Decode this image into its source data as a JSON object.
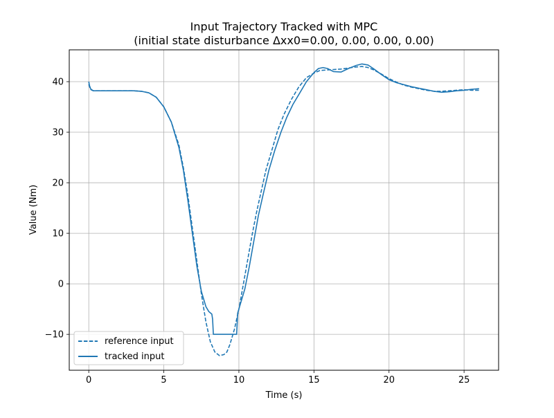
{
  "chart_data": {
    "type": "line",
    "title": "Input Trajectory Tracked with MPC",
    "subtitle": "(initial state disturbance Δxx0=0.00, 0.00, 0.00, 0.00)",
    "xlabel": "Time (s)",
    "ylabel": "Value (Nm)",
    "xlim": [
      -1.3,
      27.3
    ],
    "ylim": [
      -17.1,
      46.3
    ],
    "xticks": [
      0,
      5,
      10,
      15,
      20,
      25
    ],
    "yticks": [
      -10,
      0,
      10,
      20,
      30,
      40
    ],
    "xtick_labels": [
      "0",
      "5",
      "10",
      "15",
      "20",
      "25"
    ],
    "ytick_labels": [
      "−10",
      "0",
      "10",
      "20",
      "30",
      "40"
    ],
    "grid": true,
    "legend_position": "lower-left",
    "series": [
      {
        "name": "reference input",
        "style": "dashed",
        "color": "#1f77b4",
        "x": [
          0.0,
          0.1,
          0.3,
          0.5,
          1.0,
          2.0,
          3.0,
          3.5,
          4.0,
          4.5,
          5.0,
          5.5,
          6.0,
          6.3,
          6.6,
          6.9,
          7.2,
          7.5,
          7.8,
          8.1,
          8.4,
          8.7,
          9.0,
          9.2,
          9.4,
          9.7,
          10.0,
          10.3,
          10.6,
          10.9,
          11.2,
          11.5,
          11.8,
          12.2,
          12.6,
          13.0,
          13.5,
          14.0,
          14.5,
          15.0,
          15.4,
          15.8,
          16.3,
          16.8,
          17.3,
          17.8,
          18.2,
          18.6,
          19.0,
          19.5,
          20.0,
          20.5,
          21.0,
          21.5,
          22.0,
          22.5,
          23.0,
          23.5,
          24.0,
          24.5,
          25.0,
          25.5,
          26.0
        ],
        "y": [
          39.5,
          38.6,
          38.2,
          38.2,
          38.2,
          38.2,
          38.2,
          38.1,
          37.8,
          36.9,
          35.0,
          32.0,
          27.5,
          23.0,
          17.5,
          11.0,
          4.5,
          -2.0,
          -7.5,
          -11.5,
          -13.5,
          -14.2,
          -14.0,
          -13.5,
          -12.0,
          -9.0,
          -5.0,
          0.0,
          5.0,
          10.0,
          14.5,
          18.5,
          22.5,
          26.5,
          30.5,
          33.5,
          36.5,
          39.0,
          40.8,
          41.7,
          42.2,
          42.3,
          42.4,
          42.5,
          42.7,
          42.9,
          43.0,
          42.8,
          42.3,
          41.5,
          40.6,
          39.9,
          39.3,
          38.9,
          38.6,
          38.3,
          38.1,
          38.1,
          38.2,
          38.3,
          38.4,
          38.3,
          38.3
        ]
      },
      {
        "name": "tracked input",
        "style": "solid",
        "color": "#1f77b4",
        "x": [
          0.0,
          0.05,
          0.15,
          0.3,
          0.5,
          1.0,
          2.0,
          3.0,
          3.5,
          4.0,
          4.5,
          5.0,
          5.5,
          6.0,
          6.3,
          6.6,
          6.9,
          7.2,
          7.5,
          7.8,
          8.0,
          8.2,
          8.25,
          8.3,
          8.6,
          9.0,
          9.5,
          9.85,
          9.9,
          9.92,
          10.1,
          10.4,
          10.7,
          11.0,
          11.3,
          11.6,
          12.0,
          12.4,
          12.8,
          13.2,
          13.6,
          14.0,
          14.5,
          15.0,
          15.3,
          15.6,
          15.9,
          16.3,
          16.8,
          17.3,
          17.8,
          18.2,
          18.6,
          19.0,
          19.5,
          20.0,
          20.5,
          21.0,
          21.5,
          22.0,
          22.5,
          23.0,
          23.5,
          24.0,
          24.5,
          25.0,
          25.5,
          26.0
        ],
        "y": [
          40.0,
          39.2,
          38.4,
          38.2,
          38.2,
          38.2,
          38.2,
          38.2,
          38.1,
          37.8,
          36.9,
          35.0,
          32.0,
          27.0,
          22.5,
          16.5,
          10.0,
          3.5,
          -1.5,
          -4.5,
          -5.5,
          -6.0,
          -7.0,
          -10.0,
          -10.0,
          -10.0,
          -10.0,
          -10.0,
          -7.0,
          -5.8,
          -4.0,
          -1.0,
          3.5,
          8.5,
          13.5,
          17.5,
          22.5,
          26.5,
          30.0,
          33.0,
          35.5,
          37.5,
          40.0,
          41.8,
          42.6,
          42.8,
          42.6,
          42.0,
          41.9,
          42.6,
          43.2,
          43.5,
          43.3,
          42.5,
          41.4,
          40.4,
          39.8,
          39.4,
          39.0,
          38.7,
          38.4,
          38.1,
          37.9,
          38.0,
          38.2,
          38.3,
          38.5,
          38.6
        ]
      }
    ]
  }
}
